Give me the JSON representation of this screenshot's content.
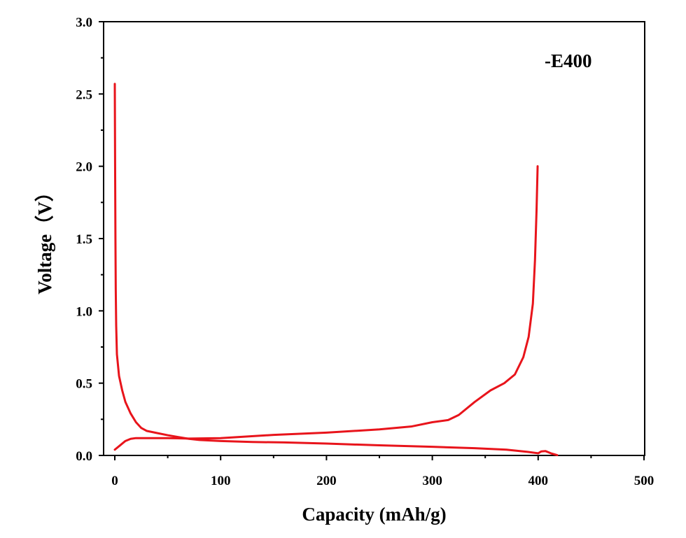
{
  "chart_data": {
    "type": "line",
    "xlabel": "Capacity (mAh/g)",
    "ylabel": "Voltage（V）",
    "xlim": [
      0,
      500
    ],
    "ylim": [
      0,
      3
    ],
    "xticks": [
      0,
      100,
      200,
      300,
      400,
      500
    ],
    "xtick_labels": [
      "0",
      "100",
      "200",
      "300",
      "400",
      "500"
    ],
    "yticks": [
      0,
      0.5,
      1,
      1.5,
      2,
      2.5,
      3
    ],
    "ytick_labels": [
      "0.0",
      "0.5",
      "1.0",
      "1.5",
      "2.0",
      "2.5",
      "3.0"
    ],
    "grid": false,
    "annotation": "-E400",
    "line_color": "#e8141b",
    "series": [
      {
        "points": [
          [
            0,
            2.57
          ],
          [
            0.3,
            2.0
          ],
          [
            0.6,
            1.5
          ],
          [
            0.9,
            1.15
          ],
          [
            1.3,
            0.9
          ],
          [
            2,
            0.7
          ],
          [
            4,
            0.55
          ],
          [
            7,
            0.45
          ],
          [
            10,
            0.37
          ],
          [
            15,
            0.29
          ],
          [
            20,
            0.23
          ],
          [
            25,
            0.19
          ],
          [
            30,
            0.17
          ],
          [
            40,
            0.155
          ],
          [
            50,
            0.14
          ],
          [
            60,
            0.127
          ],
          [
            70,
            0.115
          ],
          [
            80,
            0.107
          ],
          [
            100,
            0.1
          ],
          [
            130,
            0.093
          ],
          [
            160,
            0.09
          ],
          [
            200,
            0.082
          ],
          [
            250,
            0.07
          ],
          [
            300,
            0.06
          ],
          [
            340,
            0.05
          ],
          [
            370,
            0.04
          ],
          [
            390,
            0.025
          ],
          [
            400,
            0.015
          ],
          [
            403,
            0.028
          ],
          [
            407,
            0.03
          ],
          [
            412,
            0.015
          ],
          [
            418,
            0.002
          ]
        ]
      },
      {
        "points": [
          [
            0,
            0.04
          ],
          [
            5,
            0.07
          ],
          [
            10,
            0.1
          ],
          [
            15,
            0.115
          ],
          [
            20,
            0.12
          ],
          [
            30,
            0.12
          ],
          [
            50,
            0.12
          ],
          [
            70,
            0.117
          ],
          [
            100,
            0.12
          ],
          [
            150,
            0.142
          ],
          [
            200,
            0.158
          ],
          [
            250,
            0.18
          ],
          [
            280,
            0.2
          ],
          [
            300,
            0.23
          ],
          [
            315,
            0.245
          ],
          [
            325,
            0.28
          ],
          [
            340,
            0.37
          ],
          [
            355,
            0.45
          ],
          [
            368,
            0.5
          ],
          [
            378,
            0.56
          ],
          [
            386,
            0.68
          ],
          [
            391,
            0.82
          ],
          [
            395,
            1.05
          ],
          [
            397,
            1.35
          ],
          [
            398.5,
            1.7
          ],
          [
            399.5,
            2.0
          ]
        ]
      }
    ]
  }
}
